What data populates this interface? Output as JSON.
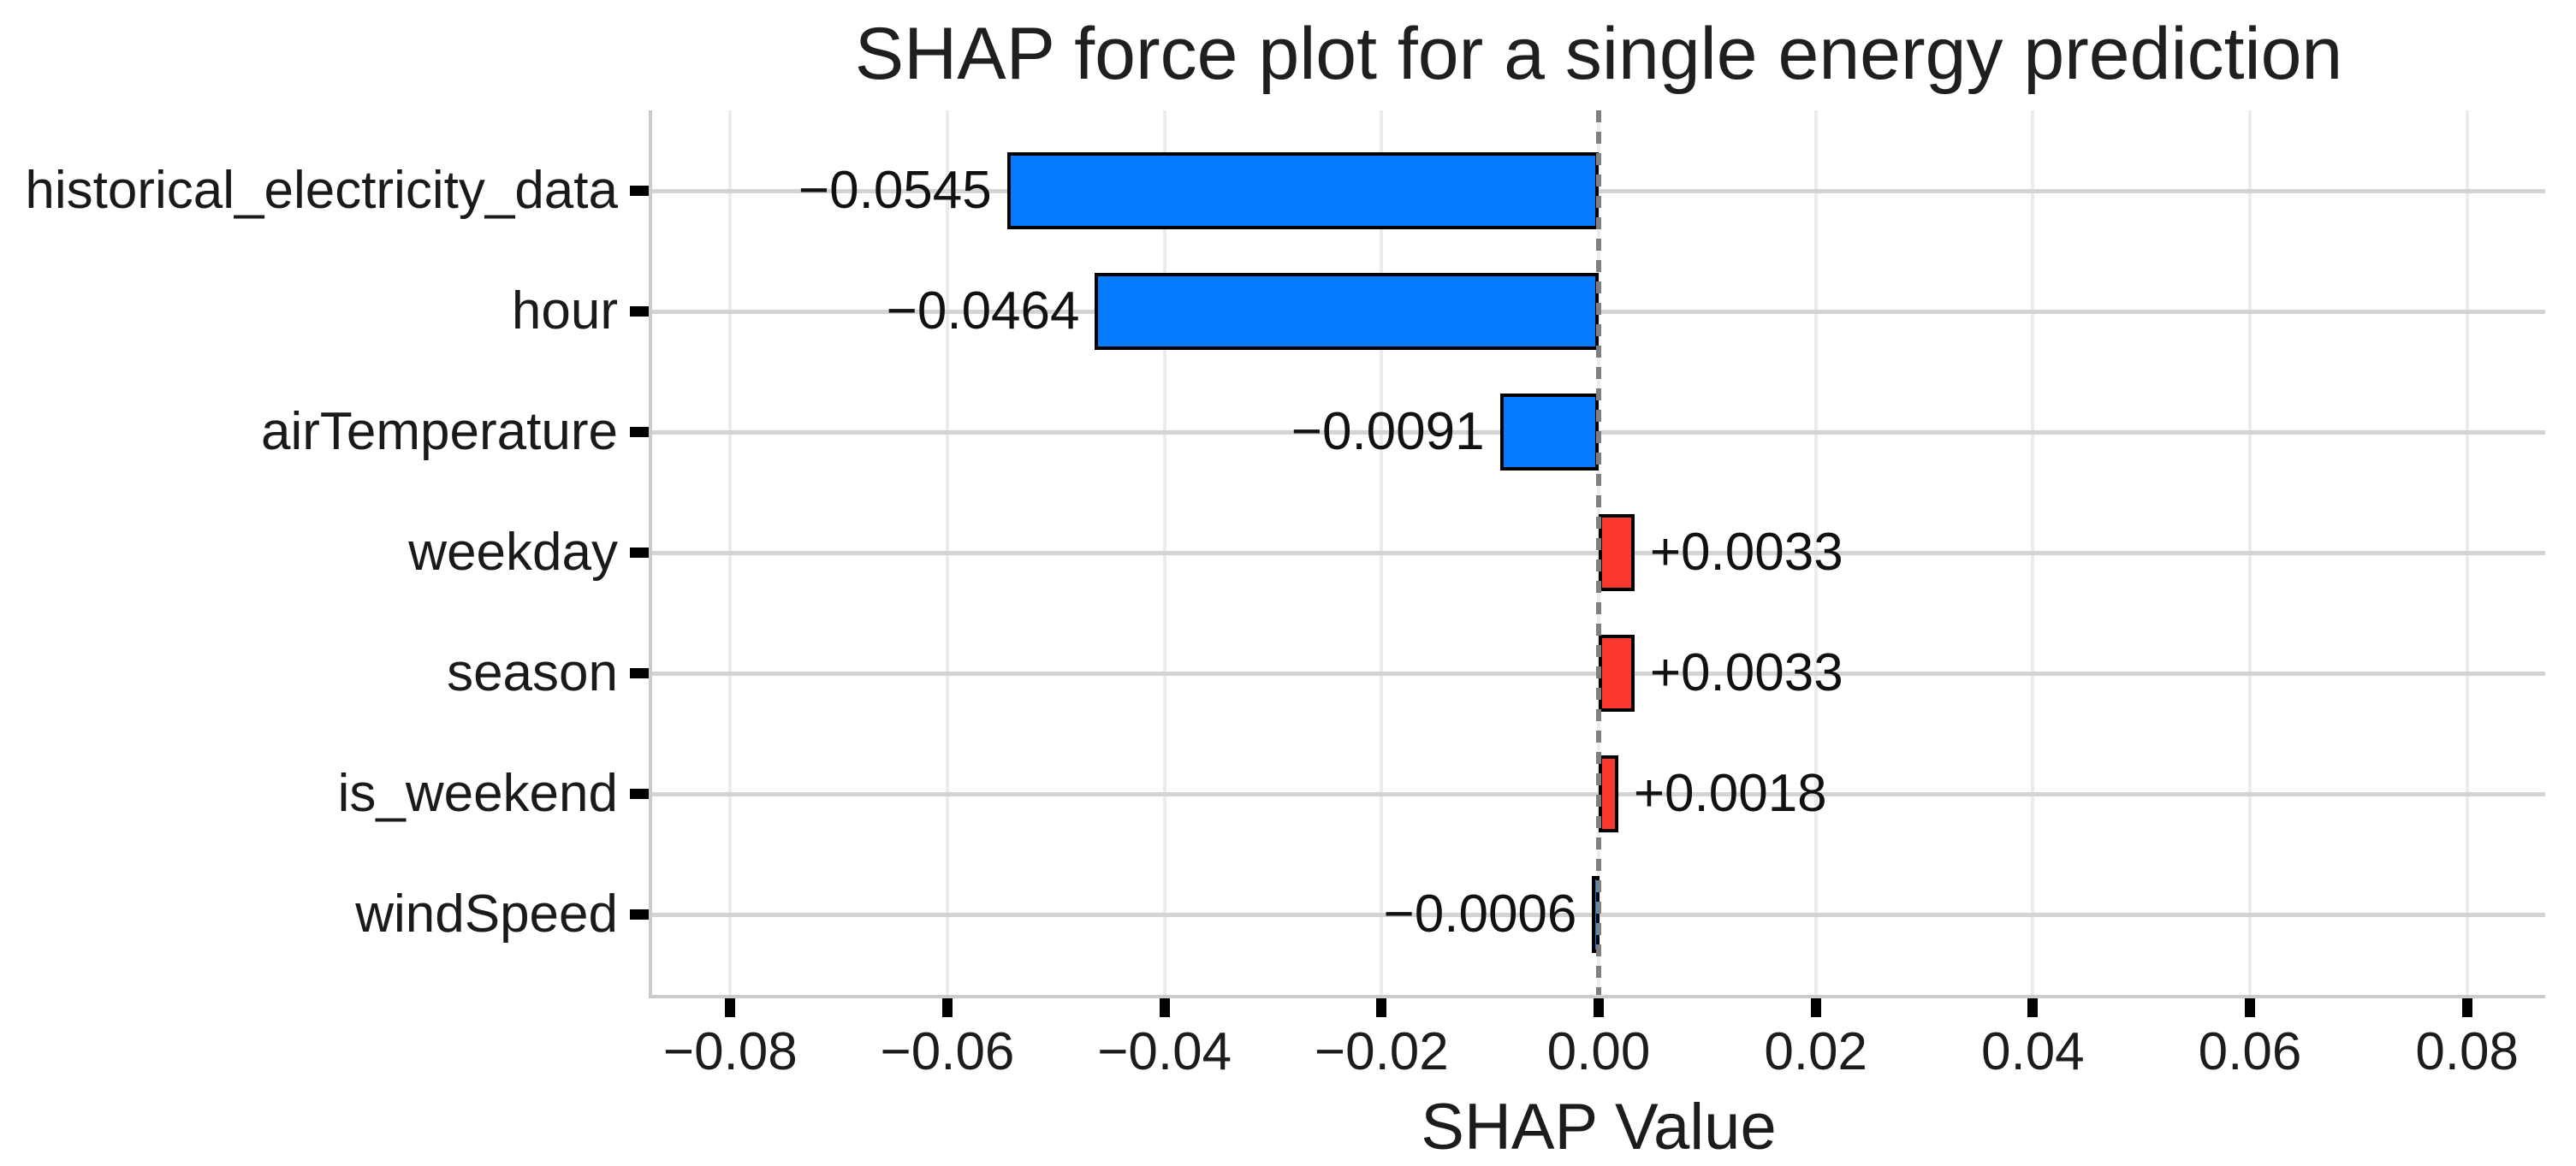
{
  "chart_data": {
    "type": "bar",
    "orientation": "horizontal",
    "title": "SHAP force plot for a single energy prediction",
    "xlabel": "SHAP Value",
    "ylabel": "",
    "categories": [
      "historical_electricity_data",
      "hour",
      "airTemperature",
      "weekday",
      "season",
      "is_weekend",
      "windSpeed"
    ],
    "values": [
      -0.0545,
      -0.0464,
      -0.0091,
      0.0033,
      0.0033,
      0.0018,
      -0.0006
    ],
    "value_labels": [
      "−0.0545",
      "−0.0464",
      "−0.0091",
      "+0.0033",
      "+0.0033",
      "+0.0018",
      "−0.0006"
    ],
    "x_ticks": [
      -0.08,
      -0.06,
      -0.04,
      -0.02,
      0,
      0.02,
      0.04,
      0.06,
      0.08
    ],
    "x_tick_labels": [
      "−0.08",
      "−0.06",
      "−0.04",
      "−0.02",
      "0.00",
      "0.02",
      "0.04",
      "0.06",
      "0.08"
    ],
    "xlim": [
      -0.0872,
      0.0872
    ],
    "grid": true,
    "zero_line_at": 0,
    "legend": "none",
    "colors": {
      "negative_bar": "#077bff",
      "positive_bar": "#fb382d",
      "bar_edge": "#000000",
      "zero_line": "#7f7f7f",
      "grid_horizontal": "#d4d4d4",
      "grid_vertical": "#ececec",
      "spine": "#cbcbcb",
      "text": "#1a1a1a",
      "background": "#ffffff"
    }
  }
}
